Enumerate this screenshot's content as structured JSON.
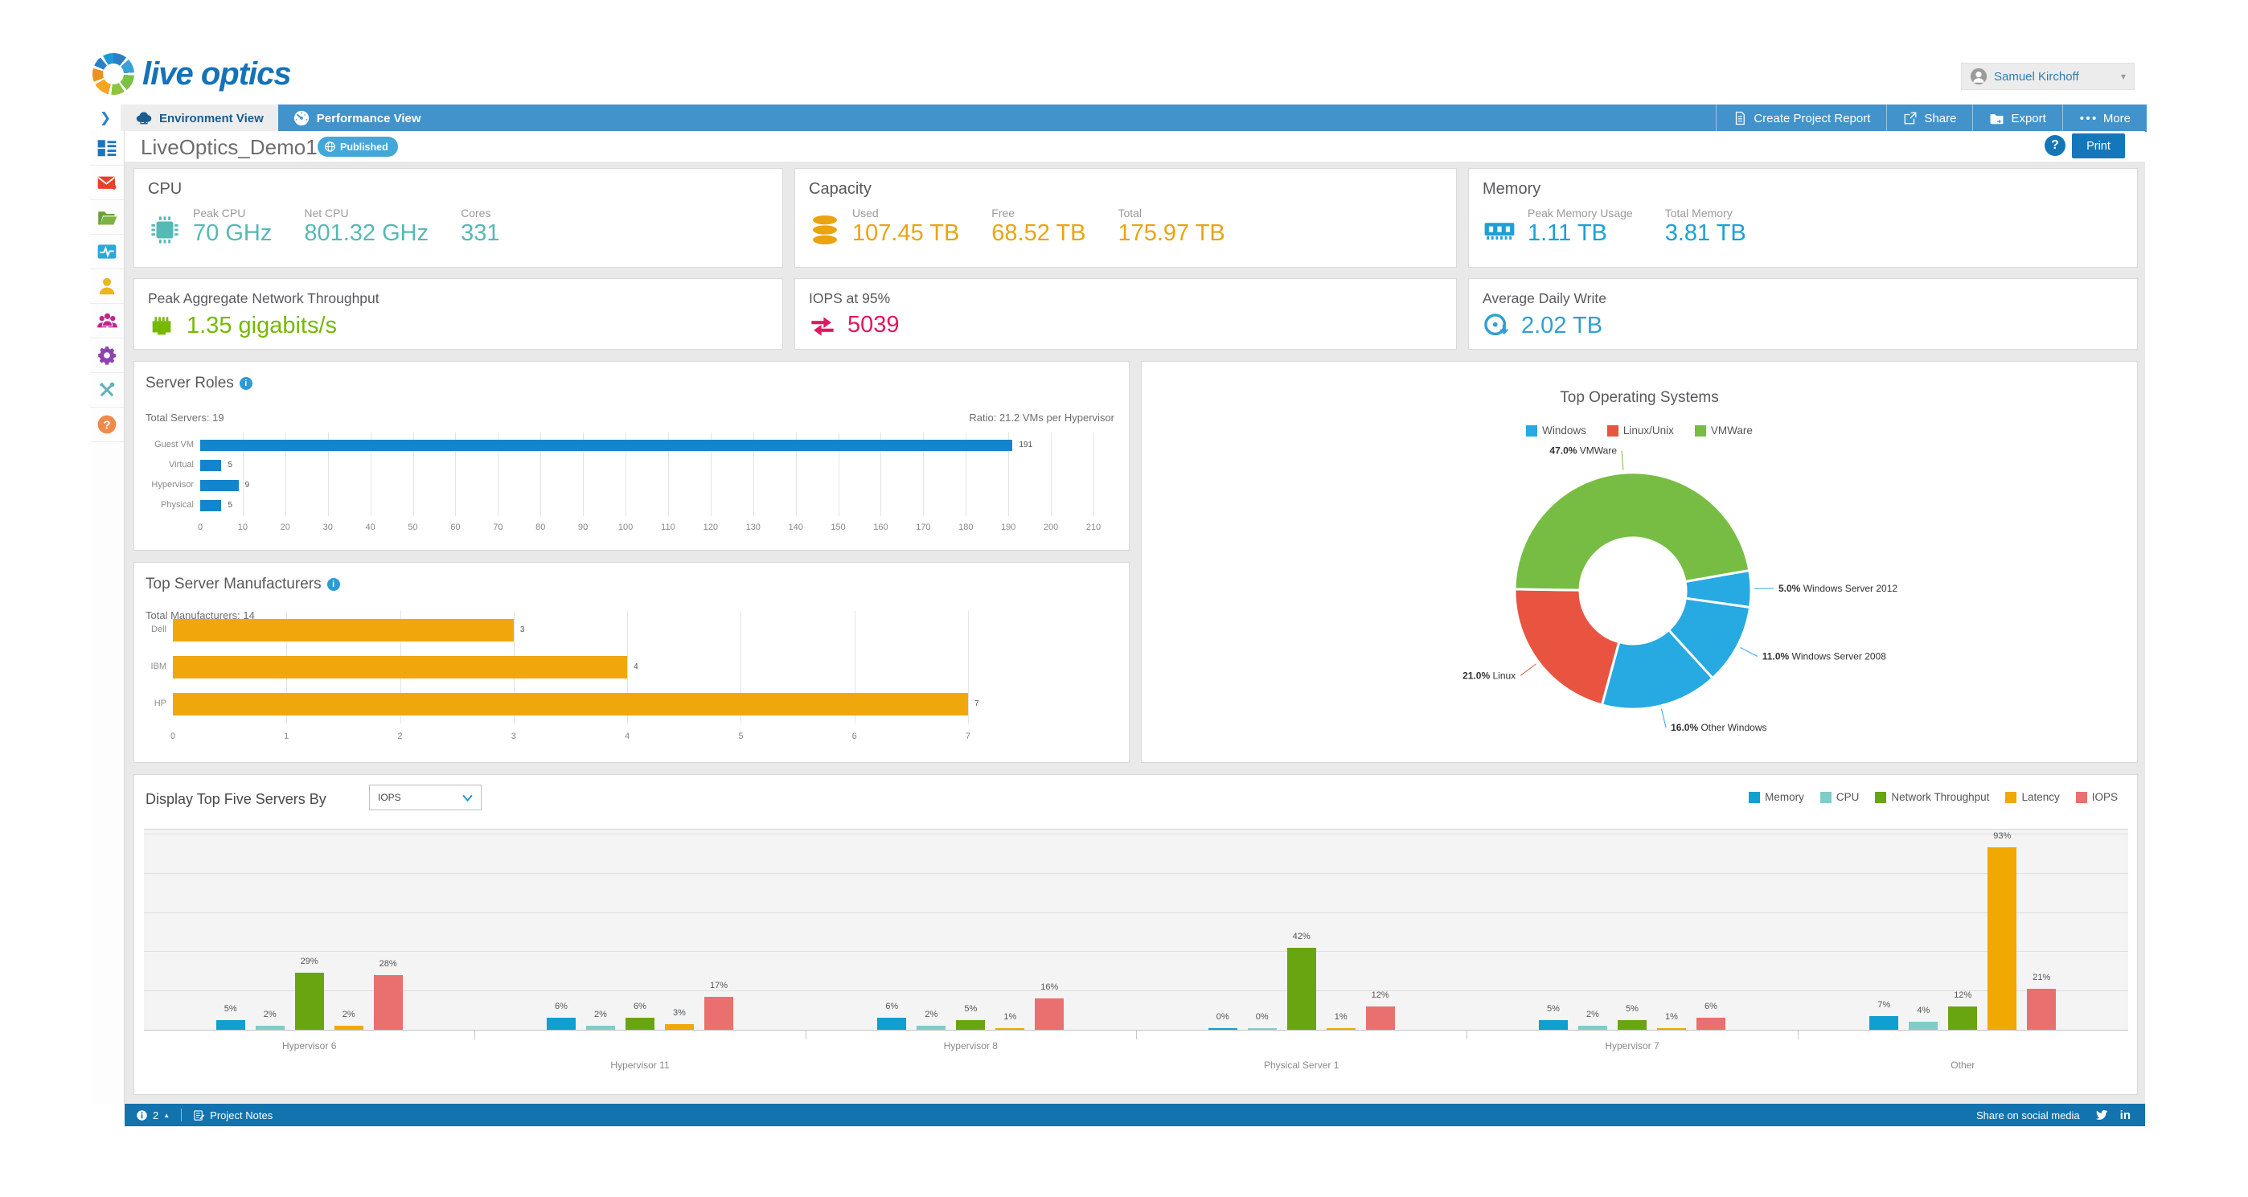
{
  "header": {
    "logo_text": "live optics",
    "user": {
      "name": "Samuel Kirchoff"
    }
  },
  "nav": {
    "tabs": [
      {
        "label": "Environment View",
        "active": true
      },
      {
        "label": "Performance View",
        "active": false
      }
    ],
    "actions": [
      {
        "label": "Create Project Report",
        "icon": "report-icon"
      },
      {
        "label": "Share",
        "icon": "share-icon"
      },
      {
        "label": "Export",
        "icon": "export-icon"
      },
      {
        "label": "More",
        "icon": "more-icon"
      }
    ]
  },
  "sidebar": {
    "items": [
      {
        "name": "dashboard",
        "color": "#1c75bc"
      },
      {
        "name": "email",
        "color": "#e8402a"
      },
      {
        "name": "projects-folder",
        "color": "#7cb342"
      },
      {
        "name": "performance-monitor",
        "color": "#29a8dc"
      },
      {
        "name": "profile",
        "color": "#f0b41c"
      },
      {
        "name": "team",
        "color": "#c2258e"
      },
      {
        "name": "settings",
        "color": "#8e44ad"
      },
      {
        "name": "tools",
        "color": "#62b0b7"
      },
      {
        "name": "help",
        "color": "#f1884c"
      }
    ]
  },
  "toolbar": {
    "project_name": "LiveOptics_Demo1",
    "status_badge": "Published",
    "help_label": "?",
    "print_label": "Print"
  },
  "cards": {
    "cpu": {
      "title": "CPU",
      "icon": "cpu-chip-icon",
      "accent": "#56b9b4",
      "metrics": [
        {
          "label": "Peak CPU",
          "value": "70 GHz"
        },
        {
          "label": "Net CPU",
          "value": "801.32 GHz"
        },
        {
          "label": "Cores",
          "value": "331"
        }
      ]
    },
    "capacity": {
      "title": "Capacity",
      "icon": "database-icon",
      "accent": "#eaa410",
      "metrics": [
        {
          "label": "Used",
          "value": "107.45 TB"
        },
        {
          "label": "Free",
          "value": "68.52 TB"
        },
        {
          "label": "Total",
          "value": "175.97 TB"
        }
      ]
    },
    "memory": {
      "title": "Memory",
      "icon": "ram-icon",
      "accent": "#1ba0d8",
      "metrics": [
        {
          "label": "Peak Memory Usage",
          "value": "1.11 TB"
        },
        {
          "label": "Total Memory",
          "value": "3.81 TB"
        }
      ]
    },
    "network": {
      "title": "Peak Aggregate Network Throughput",
      "icon": "ethernet-icon",
      "accent": "#76b900",
      "value": "1.35 gigabits/s"
    },
    "iops": {
      "title": "IOPS at 95%",
      "icon": "transfer-arrows-icon",
      "accent": "#e3175f",
      "value": "5039"
    },
    "daily_write": {
      "title": "Average Daily Write",
      "icon": "disk-write-icon",
      "accent": "#2f9fd4",
      "value": "2.02 TB"
    }
  },
  "chart_data": [
    {
      "id": "server-roles",
      "type": "bar",
      "orientation": "horizontal",
      "title": "Server Roles",
      "total_label": "Total Servers: 19",
      "ratio_label": "Ratio: 21.2 VMs per Hypervisor",
      "categories": [
        "Guest VM",
        "Virtual",
        "Hypervisor",
        "Physical"
      ],
      "values": [
        191,
        5,
        9,
        5
      ],
      "bar_color": "#1385cc",
      "xlim": [
        0,
        210
      ],
      "xticks": [
        0,
        10,
        20,
        30,
        40,
        50,
        60,
        70,
        80,
        90,
        100,
        110,
        120,
        130,
        140,
        150,
        160,
        170,
        180,
        190,
        200,
        210
      ],
      "grid": true
    },
    {
      "id": "manufacturers",
      "type": "bar",
      "orientation": "horizontal",
      "title": "Top Server Manufacturers",
      "total_label": "Total Manufacturers: 14",
      "categories": [
        "Dell",
        "IBM",
        "HP"
      ],
      "values": [
        3,
        4,
        7
      ],
      "bar_color": "#f0a70c",
      "xlim": [
        0,
        7.8
      ],
      "xticks": [
        0,
        1,
        2,
        3,
        4,
        5,
        6,
        7
      ],
      "grid": true
    },
    {
      "id": "top-os",
      "type": "pie",
      "donut": true,
      "title": "Top Operating Systems",
      "legend_position": "top",
      "legend": [
        {
          "label": "Windows",
          "color": "#27a9e1"
        },
        {
          "label": "Linux/Unix",
          "color": "#e85440"
        },
        {
          "label": "VMWare",
          "color": "#77bd43"
        }
      ],
      "start_angle_deg": 80,
      "slices": [
        {
          "label": "Windows Server 2012",
          "pct": 5.0,
          "color": "#27a9e1"
        },
        {
          "label": "Windows Server 2008",
          "pct": 11.0,
          "color": "#27a9e1"
        },
        {
          "label": "Other Windows",
          "pct": 16.0,
          "color": "#27a9e1"
        },
        {
          "label": "Linux",
          "pct": 21.0,
          "color": "#e85440"
        },
        {
          "label": "VMWare",
          "pct": 47.0,
          "color": "#77bd43"
        }
      ]
    },
    {
      "id": "top-five",
      "type": "bar",
      "grouped": true,
      "control_label": "Display Top Five Servers By",
      "dropdown_value": "IOPS",
      "categories": [
        "Hypervisor 6",
        "Hypervisor 11",
        "Hypervisor 8",
        "Physical Server 1",
        "Hypervisor 7",
        "Other"
      ],
      "series": [
        {
          "name": "Memory",
          "color": "#0f9fd0",
          "values": [
            5,
            6,
            6,
            0,
            5,
            7
          ]
        },
        {
          "name": "CPU",
          "color": "#7fccc9",
          "values": [
            2,
            2,
            2,
            0,
            2,
            4
          ]
        },
        {
          "name": "Network Throughput",
          "color": "#69a411",
          "values": [
            29,
            6,
            5,
            42,
            5,
            12
          ]
        },
        {
          "name": "Latency",
          "color": "#f0a802",
          "values": [
            2,
            3,
            1,
            1,
            1,
            93
          ]
        },
        {
          "name": "IOPS",
          "color": "#e9706e",
          "values": [
            28,
            17,
            16,
            12,
            6,
            21
          ]
        }
      ],
      "ylim": [
        0,
        100
      ],
      "gridlines_pct": [
        20,
        40,
        60,
        80,
        100
      ],
      "value_label_suffix": "%"
    }
  ],
  "footer": {
    "notification_count": "2",
    "project_notes_label": "Project Notes",
    "share_label": "Share on social media"
  }
}
